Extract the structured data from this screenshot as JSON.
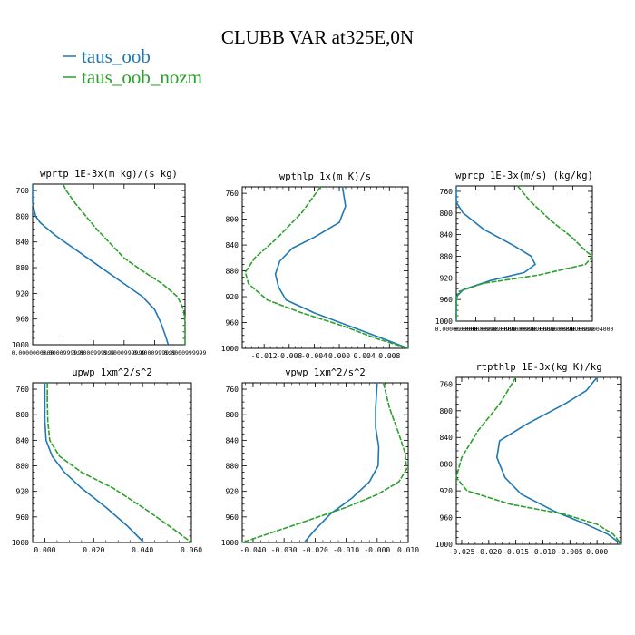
{
  "figure": {
    "title": "CLUBB VAR at325E,0N",
    "legend": [
      {
        "label": "taus_oob",
        "color": "#1f77b4"
      },
      {
        "label": "taus_oob_nozm",
        "color": "#2ca02c"
      }
    ]
  },
  "chart_data": [
    {
      "type": "line",
      "title": "wprtp  1E-3x(m kg)/(s kg)",
      "ylim": [
        1000,
        750
      ],
      "yticks": [
        "760",
        "800",
        "840",
        "880",
        "920",
        "960",
        "1000"
      ],
      "xlim": [
        0,
        1
      ],
      "xticks": [
        "0.0000000000",
        "0.0000999999",
        "0.0000999999",
        "0.0000999999",
        "0.0000999999",
        "0.0000999999"
      ],
      "series": [
        {
          "name": "taus_oob",
          "color": "#1f77b4",
          "points": [
            [
              0.0,
              750
            ],
            [
              0.0,
              760
            ],
            [
              0.0,
              780
            ],
            [
              0.02,
              800
            ],
            [
              0.05,
              810
            ],
            [
              0.15,
              830
            ],
            [
              0.3,
              855
            ],
            [
              0.45,
              880
            ],
            [
              0.6,
              905
            ],
            [
              0.72,
              925
            ],
            [
              0.8,
              945
            ],
            [
              0.84,
              965
            ],
            [
              0.87,
              985
            ],
            [
              0.89,
              1000
            ]
          ]
        },
        {
          "name": "taus_oob_nozm",
          "color": "#2ca02c",
          "points": [
            [
              0.2,
              750
            ],
            [
              0.22,
              760
            ],
            [
              0.28,
              780
            ],
            [
              0.35,
              800
            ],
            [
              0.42,
              820
            ],
            [
              0.5,
              840
            ],
            [
              0.6,
              865
            ],
            [
              0.72,
              885
            ],
            [
              0.85,
              905
            ],
            [
              0.95,
              925
            ],
            [
              0.99,
              945
            ],
            [
              1.0,
              965
            ],
            [
              1.0,
              985
            ],
            [
              1.0,
              1000
            ]
          ]
        }
      ]
    },
    {
      "type": "line",
      "title": "wpthlp  1x(m K)/s",
      "ylim": [
        1000,
        750
      ],
      "yticks": [
        "760",
        "800",
        "840",
        "880",
        "920",
        "960",
        "1000"
      ],
      "xlim": [
        -0.0155,
        0.011
      ],
      "xticks": [
        "-0.012",
        "-0.008",
        "-0.004",
        "0.000",
        "0.004",
        "0.008"
      ],
      "xtickvals": [
        -0.012,
        -0.008,
        -0.004,
        0.0,
        0.004,
        0.008
      ],
      "series": [
        {
          "name": "taus_oob",
          "color": "#1f77b4",
          "points": [
            [
              0.0005,
              750
            ],
            [
              0.001,
              780
            ],
            [
              0.0,
              805
            ],
            [
              -0.004,
              828
            ],
            [
              -0.0075,
              845
            ],
            [
              -0.0095,
              865
            ],
            [
              -0.0102,
              885
            ],
            [
              -0.0097,
              905
            ],
            [
              -0.0085,
              925
            ],
            [
              -0.004,
              945
            ],
            [
              0.0015,
              965
            ],
            [
              0.007,
              985
            ],
            [
              0.011,
              1000
            ]
          ]
        },
        {
          "name": "taus_oob_nozm",
          "color": "#2ca02c",
          "points": [
            [
              -0.003,
              750
            ],
            [
              -0.006,
              790
            ],
            [
              -0.01,
              830
            ],
            [
              -0.0135,
              860
            ],
            [
              -0.015,
              882
            ],
            [
              -0.0145,
              900
            ],
            [
              -0.0115,
              925
            ],
            [
              -0.006,
              945
            ],
            [
              0.0005,
              965
            ],
            [
              0.006,
              985
            ],
            [
              0.011,
              1000
            ]
          ]
        }
      ]
    },
    {
      "type": "line",
      "title": "wprcp  1E-3x(m/s) (kg/kg)",
      "ylim": [
        1000,
        750
      ],
      "yticks": [
        "760",
        "800",
        "840",
        "880",
        "920",
        "960",
        "1000"
      ],
      "xlim": [
        0,
        1
      ],
      "xticks": [
        "0.0000000000",
        "0.0000000999",
        "0.0000000999",
        "0.0000000999",
        "0.0000000999",
        "0.0000000999",
        "0.0000000999",
        "0.0000004000"
      ],
      "series": [
        {
          "name": "taus_oob",
          "color": "#1f77b4",
          "points": [
            [
              0.0,
              750
            ],
            [
              0.0,
              760
            ],
            [
              0.0,
              780
            ],
            [
              0.05,
              800
            ],
            [
              0.2,
              830
            ],
            [
              0.42,
              860
            ],
            [
              0.55,
              880
            ],
            [
              0.58,
              895
            ],
            [
              0.5,
              910
            ],
            [
              0.25,
              925
            ],
            [
              0.05,
              942
            ],
            [
              0.0,
              955
            ],
            [
              0.0,
              975
            ],
            [
              0.0,
              1000
            ]
          ]
        },
        {
          "name": "taus_oob_nozm",
          "color": "#2ca02c",
          "points": [
            [
              0.45,
              750
            ],
            [
              0.55,
              780
            ],
            [
              0.7,
              815
            ],
            [
              0.85,
              845
            ],
            [
              0.95,
              870
            ],
            [
              1.0,
              880
            ],
            [
              0.95,
              895
            ],
            [
              0.6,
              915
            ],
            [
              0.2,
              930
            ],
            [
              0.02,
              945
            ],
            [
              0.0,
              960
            ],
            [
              0.0,
              1000
            ]
          ]
        }
      ]
    },
    {
      "type": "line",
      "title": "upwp  1xm^2/s^2",
      "ylim": [
        1000,
        750
      ],
      "yticks": [
        "760",
        "800",
        "840",
        "880",
        "920",
        "960",
        "1000"
      ],
      "xlim": [
        -0.005,
        0.06
      ],
      "xticks": [
        "0.000",
        "0.020",
        "0.040",
        "0.060"
      ],
      "xtickvals": [
        0.0,
        0.02,
        0.04,
        0.06
      ],
      "series": [
        {
          "name": "taus_oob",
          "color": "#1f77b4",
          "points": [
            [
              0.0,
              750
            ],
            [
              0.0,
              780
            ],
            [
              0.0,
              810
            ],
            [
              0.0005,
              840
            ],
            [
              0.003,
              865
            ],
            [
              0.008,
              890
            ],
            [
              0.015,
              915
            ],
            [
              0.025,
              945
            ],
            [
              0.034,
              975
            ],
            [
              0.0405,
              1000
            ]
          ]
        },
        {
          "name": "taus_oob_nozm",
          "color": "#2ca02c",
          "points": [
            [
              0.001,
              750
            ],
            [
              0.001,
              780
            ],
            [
              0.0012,
              810
            ],
            [
              0.002,
              840
            ],
            [
              0.006,
              865
            ],
            [
              0.015,
              890
            ],
            [
              0.028,
              915
            ],
            [
              0.042,
              950
            ],
            [
              0.053,
              980
            ],
            [
              0.06,
              1000
            ]
          ]
        }
      ]
    },
    {
      "type": "line",
      "title": "vpwp  1xm^2/s^2",
      "ylim": [
        1000,
        750
      ],
      "yticks": [
        "760",
        "800",
        "840",
        "880",
        "920",
        "960",
        "1000"
      ],
      "xlim": [
        -0.0435,
        0.01
      ],
      "xticks": [
        "-0.040",
        "-0.030",
        "-0.020",
        "-0.010",
        "-0.000",
        "0.010"
      ],
      "xtickvals": [
        -0.04,
        -0.03,
        -0.02,
        -0.01,
        0.0,
        0.01
      ],
      "series": [
        {
          "name": "taus_oob",
          "color": "#1f77b4",
          "points": [
            [
              0.0,
              750
            ],
            [
              -0.0005,
              790
            ],
            [
              -0.0005,
              820
            ],
            [
              0.0005,
              850
            ],
            [
              0.0003,
              880
            ],
            [
              -0.0025,
              905
            ],
            [
              -0.008,
              930
            ],
            [
              -0.015,
              955
            ],
            [
              -0.02,
              980
            ],
            [
              -0.0235,
              1000
            ]
          ]
        },
        {
          "name": "taus_oob_nozm",
          "color": "#2ca02c",
          "points": [
            [
              0.002,
              750
            ],
            [
              0.004,
              790
            ],
            [
              0.007,
              830
            ],
            [
              0.009,
              860
            ],
            [
              0.0095,
              885
            ],
            [
              0.007,
              905
            ],
            [
              0.0,
              925
            ],
            [
              -0.01,
              945
            ],
            [
              -0.025,
              970
            ],
            [
              -0.0435,
              1000
            ]
          ]
        }
      ]
    },
    {
      "type": "line",
      "title": "rtpthlp  1E-3x(kg K)/kg",
      "ylim": [
        1000,
        750
      ],
      "yticks": [
        "760",
        "800",
        "840",
        "880",
        "920",
        "960",
        "1000"
      ],
      "xlim": [
        -0.026,
        0.0045
      ],
      "xticks": [
        "-0.025",
        "-0.020",
        "-0.015",
        "-0.010",
        "-0.005",
        "0.000"
      ],
      "xtickvals": [
        -0.025,
        -0.02,
        -0.015,
        -0.01,
        -0.005,
        0.0
      ],
      "series": [
        {
          "name": "taus_oob",
          "color": "#1f77b4",
          "points": [
            [
              0.0,
              750
            ],
            [
              -0.002,
              770
            ],
            [
              -0.006,
              790
            ],
            [
              -0.013,
              820
            ],
            [
              -0.018,
              845
            ],
            [
              -0.0185,
              870
            ],
            [
              -0.017,
              900
            ],
            [
              -0.014,
              925
            ],
            [
              -0.008,
              950
            ],
            [
              -0.002,
              970
            ],
            [
              0.002,
              985
            ],
            [
              0.0045,
              1000
            ]
          ]
        },
        {
          "name": "taus_oob_nozm",
          "color": "#2ca02c",
          "points": [
            [
              -0.015,
              750
            ],
            [
              -0.018,
              790
            ],
            [
              -0.022,
              830
            ],
            [
              -0.025,
              870
            ],
            [
              -0.026,
              900
            ],
            [
              -0.024,
              920
            ],
            [
              -0.016,
              940
            ],
            [
              -0.006,
              955
            ],
            [
              0.0,
              970
            ],
            [
              0.003,
              985
            ],
            [
              0.0045,
              1000
            ]
          ]
        }
      ]
    }
  ]
}
